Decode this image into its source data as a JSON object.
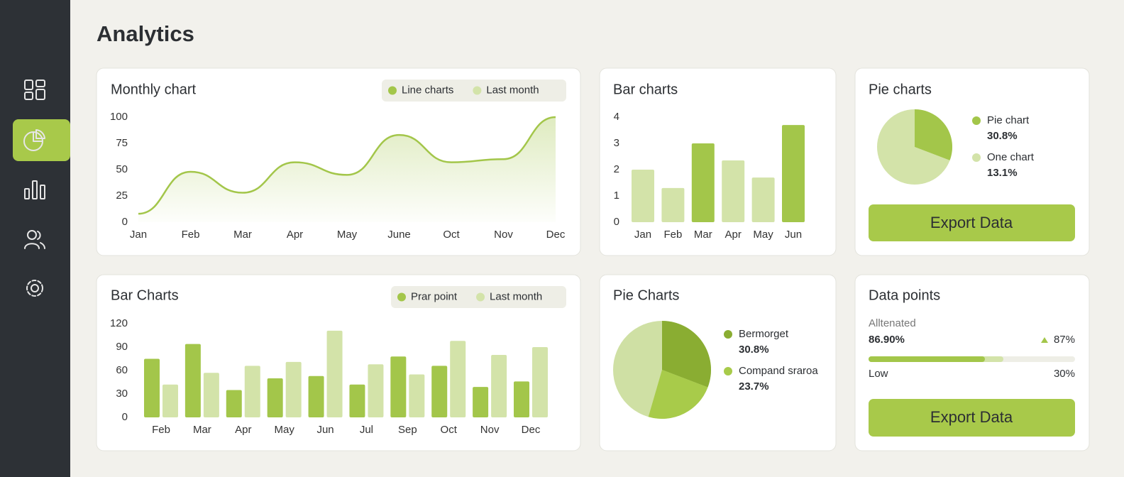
{
  "page": {
    "title": "Analytics"
  },
  "chart_data": [
    {
      "type": "area",
      "title": "Monthly chart",
      "legend": [
        {
          "name": "Line charts",
          "color": "#a3c64a"
        },
        {
          "name": "Last month",
          "color": "#d3e3a9"
        }
      ],
      "categories": [
        "Jan",
        "Feb",
        "Mar",
        "Apr",
        "May",
        "June",
        "Oct",
        "Nov",
        "Dec"
      ],
      "values": [
        8,
        48,
        28,
        57,
        45,
        83,
        57,
        60,
        100
      ],
      "color": "#a3c64a",
      "ylim": [
        0,
        100
      ],
      "yticks": [
        0,
        25,
        50,
        75,
        100
      ]
    },
    {
      "type": "bar",
      "title": "Bar charts",
      "categories": [
        "Jan",
        "Feb",
        "Mar",
        "Apr",
        "May",
        "Jun"
      ],
      "values": [
        2,
        1.3,
        3,
        2.35,
        1.7,
        3.7
      ],
      "colors": [
        "#d3e3a9",
        "#d3e3a9",
        "#a3c64a",
        "#d3e3a9",
        "#d3e3a9",
        "#a3c64a"
      ],
      "ylim": [
        0,
        4
      ],
      "yticks": [
        0,
        1,
        2,
        3,
        4
      ]
    },
    {
      "type": "pie",
      "title": "Pie charts",
      "base_color": "#d3e3a9",
      "categories": [
        "Pie chart",
        "One chart"
      ],
      "values": [
        30.8,
        13.1
      ],
      "value_labels": [
        "30.8%",
        "13.1%"
      ],
      "colors": [
        "#a3c64a",
        "#d3e3a9"
      ]
    },
    {
      "type": "grouped-bar",
      "title": "Bar Charts",
      "categories": [
        "Feb",
        "Mar",
        "Apr",
        "May",
        "Jun",
        "Jul",
        "Sep",
        "Oct",
        "Nov",
        "Dec"
      ],
      "series": [
        {
          "name": "Prar point",
          "color": "#a3c64a",
          "values": [
            75,
            94,
            35,
            50,
            53,
            42,
            78,
            66,
            39,
            46
          ]
        },
        {
          "name": "Last month",
          "color": "#d3e3a9",
          "values": [
            42,
            57,
            66,
            71,
            111,
            68,
            55,
            98,
            80,
            90
          ]
        }
      ],
      "ylim": [
        0,
        120
      ],
      "yticks": [
        0,
        30,
        60,
        90,
        120
      ]
    },
    {
      "type": "pie",
      "title": "Pie Charts",
      "base_color": "#cfe0a4",
      "categories": [
        "Bermorget",
        "Compand sraroa"
      ],
      "values": [
        30.8,
        23.7
      ],
      "value_labels": [
        "30.8%",
        "23.7%"
      ],
      "colors": [
        "#8aad32",
        "#a8cb4a"
      ]
    }
  ],
  "export_button": "Export Data",
  "data_points": {
    "title": "Data points",
    "label": "Alltenated",
    "value": "86.90%",
    "change": "87%",
    "low_label": "Low",
    "low_value": "30%"
  }
}
